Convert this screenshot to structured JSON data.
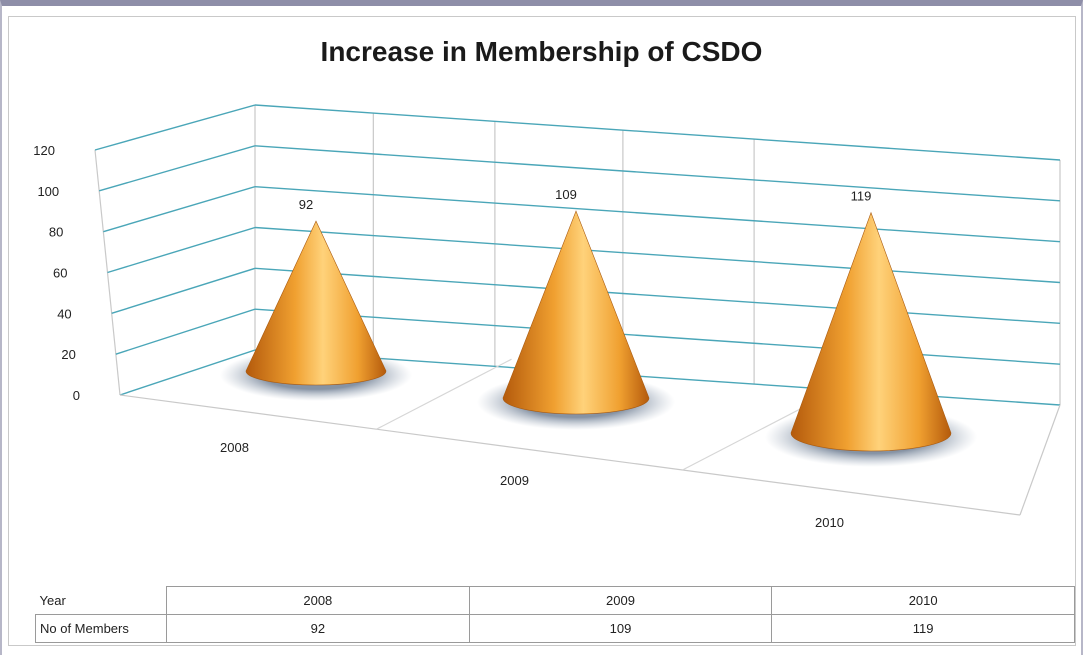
{
  "chart_data": {
    "type": "bar",
    "shape": "cone-3d",
    "title": "Increase in Membership of CSDO",
    "categories": [
      "2008",
      "2009",
      "2010"
    ],
    "series": [
      {
        "name": "No of Members",
        "values": [
          92,
          109,
          119
        ]
      }
    ],
    "data_labels": [
      "92",
      "109",
      "119"
    ],
    "y_ticks": [
      "0",
      "20",
      "40",
      "60",
      "80",
      "100",
      "120"
    ],
    "ylim": [
      0,
      120
    ],
    "grid": true,
    "colors": {
      "cone_light": "#ffd27a",
      "cone_mid": "#f0a030",
      "cone_dark": "#b45a0c",
      "grid": "#4aa6b8"
    },
    "data_table": {
      "header_label": "Year",
      "row_label": "No of Members",
      "years": [
        "2008",
        "2009",
        "2010"
      ],
      "values": [
        "92",
        "109",
        "119"
      ]
    }
  }
}
